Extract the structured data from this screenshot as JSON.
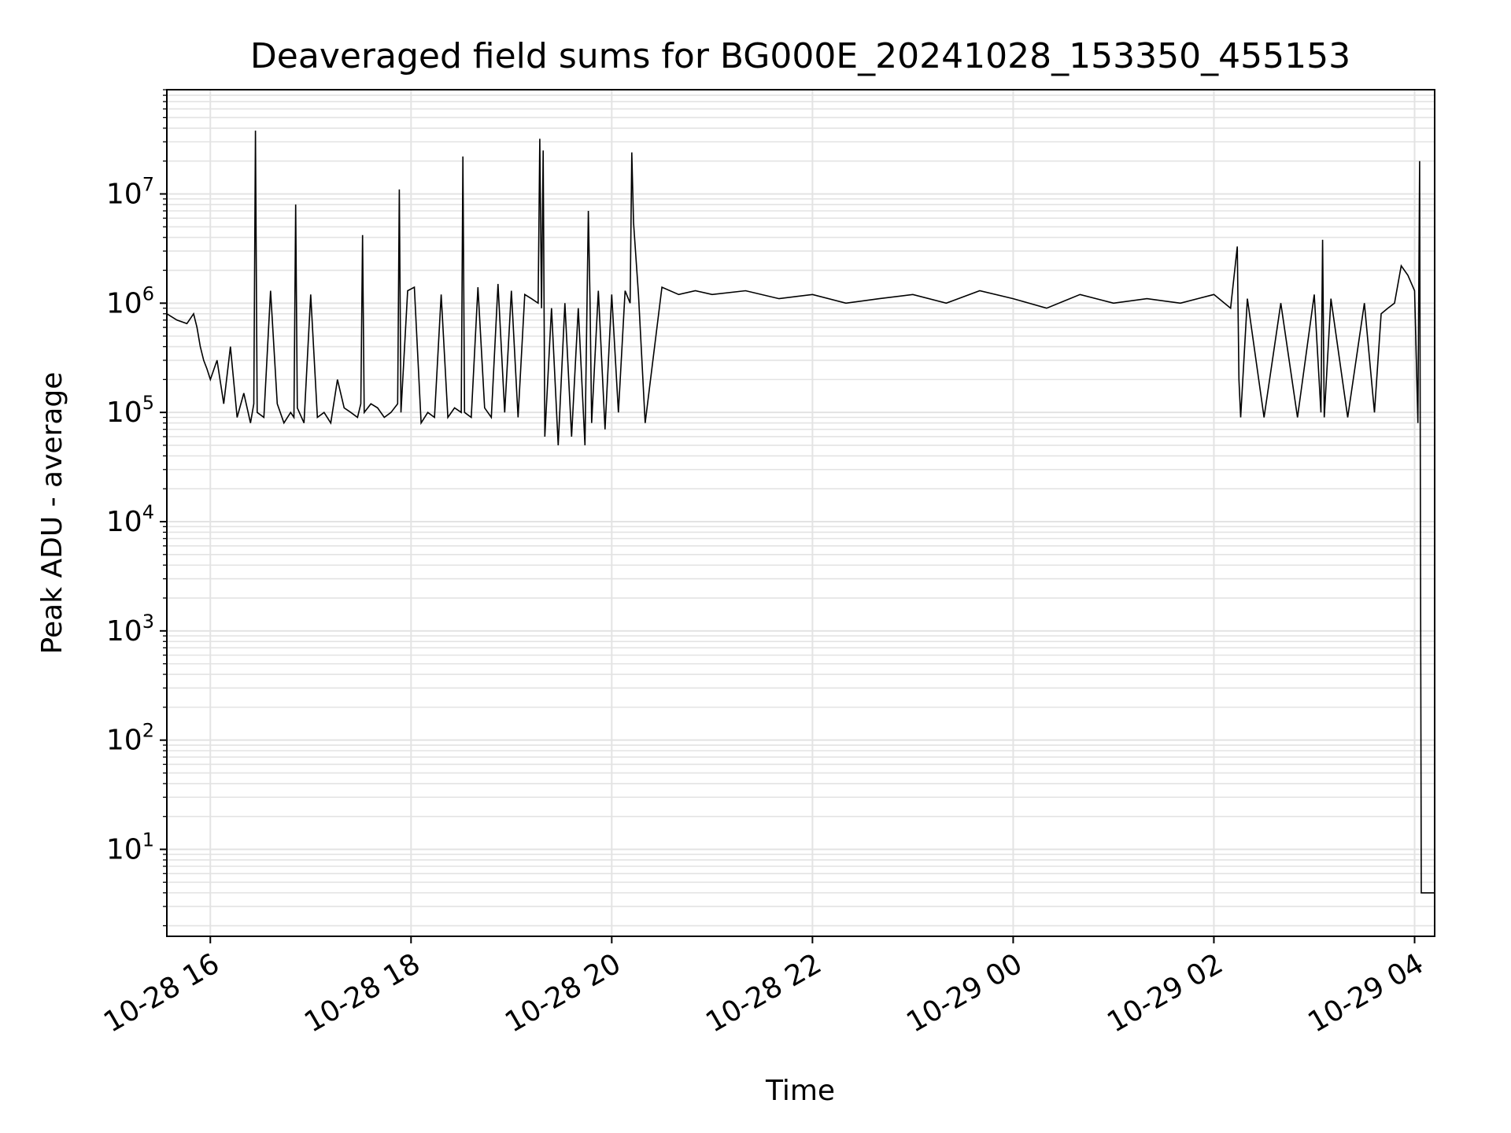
{
  "chart_data": {
    "type": "line",
    "title": "Deaveraged field sums for BG000E_20241028_153350_455153",
    "xlabel": "Time",
    "ylabel": "Peak ADU - average",
    "yscale": "log",
    "ylim": [
      1.6,
      90000000
    ],
    "xlim": [
      "2024-10-28 15:34",
      "2024-10-29 04:12"
    ],
    "grid": true,
    "line_color": "#000000",
    "grid_color": "#e3e3e3",
    "x_ticks": [
      {
        "value": "2024-10-28 16:00",
        "label": "10-28 16"
      },
      {
        "value": "2024-10-28 18:00",
        "label": "10-28 18"
      },
      {
        "value": "2024-10-28 20:00",
        "label": "10-28 20"
      },
      {
        "value": "2024-10-28 22:00",
        "label": "10-28 22"
      },
      {
        "value": "2024-10-29 00:00",
        "label": "10-29 00"
      },
      {
        "value": "2024-10-29 02:00",
        "label": "10-29 02"
      },
      {
        "value": "2024-10-29 04:00",
        "label": "10-29 04"
      }
    ],
    "y_ticks": [
      {
        "value": 10,
        "base": "10",
        "exp": "1"
      },
      {
        "value": 100,
        "base": "10",
        "exp": "2"
      },
      {
        "value": 1000,
        "base": "10",
        "exp": "3"
      },
      {
        "value": 10000,
        "base": "10",
        "exp": "4"
      },
      {
        "value": 100000,
        "base": "10",
        "exp": "5"
      },
      {
        "value": 1000000,
        "base": "10",
        "exp": "6"
      },
      {
        "value": 10000000,
        "base": "10",
        "exp": "7"
      }
    ],
    "series": [
      {
        "x": [
          "2024-10-28 15:34",
          "2024-10-28 15:40",
          "2024-10-28 15:46",
          "2024-10-28 15:50",
          "2024-10-28 15:52",
          "2024-10-28 15:54",
          "2024-10-28 15:56",
          "2024-10-28 15:58",
          "2024-10-28 16:00",
          "2024-10-28 16:04",
          "2024-10-28 16:08",
          "2024-10-28 16:12",
          "2024-10-28 16:16",
          "2024-10-28 16:20",
          "2024-10-28 16:24",
          "2024-10-28 16:26",
          "2024-10-28 16:27",
          "2024-10-28 16:28",
          "2024-10-28 16:32",
          "2024-10-28 16:36",
          "2024-10-28 16:40",
          "2024-10-28 16:44",
          "2024-10-28 16:48",
          "2024-10-28 16:50",
          "2024-10-28 16:51",
          "2024-10-28 16:52",
          "2024-10-28 16:56",
          "2024-10-28 17:00",
          "2024-10-28 17:04",
          "2024-10-28 17:08",
          "2024-10-28 17:12",
          "2024-10-28 17:16",
          "2024-10-28 17:20",
          "2024-10-28 17:24",
          "2024-10-28 17:28",
          "2024-10-28 17:30",
          "2024-10-28 17:31",
          "2024-10-28 17:32",
          "2024-10-28 17:36",
          "2024-10-28 17:40",
          "2024-10-28 17:44",
          "2024-10-28 17:48",
          "2024-10-28 17:52",
          "2024-10-28 17:53",
          "2024-10-28 17:54",
          "2024-10-28 17:58",
          "2024-10-28 18:02",
          "2024-10-28 18:06",
          "2024-10-28 18:10",
          "2024-10-28 18:14",
          "2024-10-28 18:18",
          "2024-10-28 18:22",
          "2024-10-28 18:26",
          "2024-10-28 18:30",
          "2024-10-28 18:31",
          "2024-10-28 18:32",
          "2024-10-28 18:36",
          "2024-10-28 18:40",
          "2024-10-28 18:44",
          "2024-10-28 18:48",
          "2024-10-28 18:52",
          "2024-10-28 18:56",
          "2024-10-28 19:00",
          "2024-10-28 19:04",
          "2024-10-28 19:08",
          "2024-10-28 19:12",
          "2024-10-28 19:16",
          "2024-10-28 19:17",
          "2024-10-28 19:18",
          "2024-10-28 19:19",
          "2024-10-28 19:20",
          "2024-10-28 19:24",
          "2024-10-28 19:28",
          "2024-10-28 19:32",
          "2024-10-28 19:36",
          "2024-10-28 19:40",
          "2024-10-28 19:44",
          "2024-10-28 19:46",
          "2024-10-28 19:47",
          "2024-10-28 19:48",
          "2024-10-28 19:52",
          "2024-10-28 19:56",
          "2024-10-28 20:00",
          "2024-10-28 20:04",
          "2024-10-28 20:08",
          "2024-10-28 20:11",
          "2024-10-28 20:12",
          "2024-10-28 20:13",
          "2024-10-28 20:16",
          "2024-10-28 20:20",
          "2024-10-28 20:30",
          "2024-10-28 20:40",
          "2024-10-28 20:50",
          "2024-10-28 21:00",
          "2024-10-28 21:20",
          "2024-10-28 21:40",
          "2024-10-28 22:00",
          "2024-10-28 22:20",
          "2024-10-28 22:40",
          "2024-10-28 23:00",
          "2024-10-28 23:20",
          "2024-10-28 23:40",
          "2024-10-29 00:00",
          "2024-10-29 00:20",
          "2024-10-29 00:40",
          "2024-10-29 01:00",
          "2024-10-29 01:20",
          "2024-10-29 01:40",
          "2024-10-29 02:00",
          "2024-10-29 02:10",
          "2024-10-29 02:14",
          "2024-10-29 02:15",
          "2024-10-29 02:16",
          "2024-10-29 02:20",
          "2024-10-29 02:30",
          "2024-10-29 02:40",
          "2024-10-29 02:50",
          "2024-10-29 03:00",
          "2024-10-29 03:04",
          "2024-10-29 03:05",
          "2024-10-29 03:06",
          "2024-10-29 03:10",
          "2024-10-29 03:20",
          "2024-10-29 03:30",
          "2024-10-29 03:36",
          "2024-10-29 03:40",
          "2024-10-29 03:44",
          "2024-10-29 03:48",
          "2024-10-29 03:52",
          "2024-10-29 03:56",
          "2024-10-29 04:00",
          "2024-10-29 04:02",
          "2024-10-29 04:03",
          "2024-10-29 04:04",
          "2024-10-29 04:06",
          "2024-10-29 04:12"
        ],
        "y": [
          800000,
          700000,
          650000,
          800000,
          600000,
          400000,
          300000,
          250000,
          200000,
          300000,
          120000,
          400000,
          90000,
          150000,
          80000,
          120000,
          38000000,
          100000,
          90000,
          1300000,
          120000,
          80000,
          100000,
          90000,
          8000000,
          110000,
          80000,
          1200000,
          90000,
          100000,
          80000,
          200000,
          110000,
          100000,
          90000,
          120000,
          4200000,
          100000,
          120000,
          110000,
          90000,
          100000,
          120000,
          11000000,
          100000,
          1300000,
          1400000,
          80000,
          100000,
          90000,
          1200000,
          90000,
          110000,
          100000,
          22000000,
          100000,
          90000,
          1400000,
          110000,
          90000,
          1500000,
          100000,
          1300000,
          90000,
          1200000,
          1100000,
          1000000,
          32000000,
          900000,
          25000000,
          60000,
          900000,
          50000,
          1000000,
          60000,
          900000,
          50000,
          7000000,
          1100000,
          80000,
          1300000,
          70000,
          1200000,
          100000,
          1300000,
          1000000,
          24000000,
          5500000,
          1200000,
          80000,
          1400000,
          1200000,
          1300000,
          1200000,
          1300000,
          1100000,
          1200000,
          1000000,
          1100000,
          1200000,
          1000000,
          1300000,
          1100000,
          900000,
          1200000,
          1000000,
          1100000,
          1000000,
          1200000,
          900000,
          3300000,
          200000,
          90000,
          1100000,
          90000,
          1000000,
          90000,
          1200000,
          100000,
          3800000,
          90000,
          1100000,
          90000,
          1000000,
          100000,
          800000,
          900000,
          1000000,
          2200000,
          1800000,
          1300000,
          80000,
          20000000,
          4,
          4,
          4
        ]
      }
    ]
  }
}
